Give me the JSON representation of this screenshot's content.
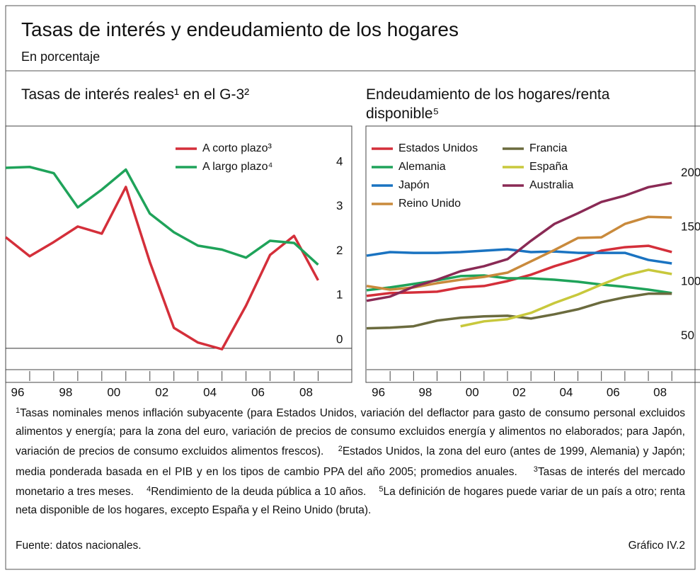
{
  "header": {
    "title": "Tasas de interés y endeudamiento de los hogares",
    "subtitle": "En porcentaje"
  },
  "chart_data": [
    {
      "type": "line",
      "title": "Tasas de interés reales¹ en el G-3²",
      "x": [
        1996,
        1997,
        1998,
        1999,
        2000,
        2001,
        2002,
        2003,
        2004,
        2005,
        2006,
        2007,
        2008,
        2009
      ],
      "series": [
        {
          "name": "A corto plazo³",
          "color": "#d42f3a",
          "values": [
            2.5,
            2.07,
            2.39,
            2.74,
            2.58,
            3.63,
            1.94,
            0.46,
            0.13,
            -0.02,
            0.96,
            2.1,
            2.53,
            1.53
          ]
        },
        {
          "name": "A largo plazo⁴",
          "color": "#1fa35a",
          "values": [
            4.06,
            4.08,
            3.94,
            3.17,
            3.57,
            4.02,
            3.03,
            2.61,
            2.31,
            2.22,
            2.04,
            2.42,
            2.37,
            1.88
          ]
        }
      ],
      "xlim": [
        1996,
        2010.4
      ],
      "ylim": [
        -0.48,
        5.0
      ],
      "yticks": [
        0,
        1,
        2,
        3,
        4
      ],
      "xticks": [
        {
          "value": 1996.5,
          "label": "96"
        },
        {
          "value": 1998.5,
          "label": "98"
        },
        {
          "value": 2000.5,
          "label": "00"
        },
        {
          "value": 2002.5,
          "label": "02"
        },
        {
          "value": 2004.5,
          "label": "04"
        },
        {
          "value": 2006.5,
          "label": "06"
        },
        {
          "value": 2008.5,
          "label": "08"
        }
      ],
      "xminorticks": [
        1997,
        1998,
        1999,
        2000,
        2001,
        2002,
        2003,
        2004,
        2005,
        2006,
        2007,
        2008,
        2009
      ],
      "zero_line": true,
      "legend": "top-right"
    },
    {
      "type": "line",
      "title": "Endeudamiento de los hogares/renta disponible⁵",
      "x": [
        1996,
        1997,
        1998,
        1999,
        2000,
        2001,
        2002,
        2003,
        2004,
        2005,
        2006,
        2007,
        2008,
        2009
      ],
      "series": [
        {
          "name": "Estados Unidos",
          "color": "#d42f3a",
          "values": [
            94.8,
            97.4,
            98,
            98.7,
            102.6,
            103.9,
            108.4,
            114.3,
            122.1,
            128.6,
            136.4,
            139.6,
            140.9,
            135.1
          ]
        },
        {
          "name": "Alemania",
          "color": "#1fa35a",
          "values": [
            100,
            102.6,
            105.8,
            109.1,
            113,
            113.6,
            111,
            111,
            109.7,
            107.8,
            105.2,
            103.2,
            100.6,
            97.4
          ]
        },
        {
          "name": "Japón",
          "color": "#1a73c1",
          "values": [
            131.8,
            135.1,
            134.4,
            134.4,
            135.1,
            136.4,
            137.7,
            135.1,
            135.7,
            134.4,
            134.4,
            134.4,
            127.9,
            124.7
          ]
        },
        {
          "name": "Reino Unido",
          "color": "#c98a3c",
          "values": [
            103.9,
            100.6,
            102.6,
            106.5,
            109.7,
            112.3,
            116.2,
            126.6,
            137,
            148.1,
            148.7,
            161,
            167.5,
            166.9
          ]
        },
        {
          "name": "Francia",
          "color": "#6b6b3e",
          "values": [
            65,
            65.6,
            66.9,
            72.1,
            74.7,
            76,
            76.6,
            74,
            77.9,
            82.5,
            89,
            93.5,
            96.8,
            96.8
          ]
        },
        {
          "name": "España",
          "color": "#c8c83c",
          "values": [
            null,
            null,
            null,
            null,
            66.9,
            71.4,
            73.4,
            79.2,
            88.3,
            96.1,
            105.2,
            113.6,
            118.8,
            114.9
          ]
        },
        {
          "name": "Australia",
          "color": "#8a2a55",
          "values": [
            90.3,
            94.2,
            103.2,
            109.7,
            117.5,
            122.1,
            128.6,
            145.5,
            161,
            170.8,
            181.2,
            187,
            194.8,
            198.7
          ]
        }
      ],
      "xlim": [
        1996,
        2010.2
      ],
      "ylim": [
        27,
        251
      ],
      "yticks": [
        50,
        100,
        150,
        200
      ],
      "xticks": [
        {
          "value": 1996.5,
          "label": "96"
        },
        {
          "value": 1998.5,
          "label": "98"
        },
        {
          "value": 2000.5,
          "label": "00"
        },
        {
          "value": 2002.5,
          "label": "02"
        },
        {
          "value": 2004.5,
          "label": "04"
        },
        {
          "value": 2006.5,
          "label": "06"
        },
        {
          "value": 2008.5,
          "label": "08"
        }
      ],
      "xminorticks": [
        1997,
        1998,
        1999,
        2000,
        2001,
        2002,
        2003,
        2004,
        2005,
        2006,
        2007,
        2008,
        2009
      ],
      "zero_line": false,
      "legend": "top-left"
    }
  ],
  "footnotes": [
    {
      "number": "1",
      "text": "Tasas nominales menos inflación subyacente (para Estados Unidos, variación del deflactor para gasto de consumo personal excluidos alimentos y energía; para la zona del euro, variación de precios de consumo excluidos energía y alimentos no elaborados; para Japón, variación de precios de consumo excluidos alimentos frescos)."
    },
    {
      "number": "2",
      "text": "Estados Unidos, la zona del euro (antes de 1999, Alemania) y Japón; media ponderada basada en el PIB y en los tipos de cambio PPA del año 2005; promedios anuales."
    },
    {
      "number": "3",
      "text": "Tasas de interés del mercado monetario a tres meses."
    },
    {
      "number": "4",
      "text": "Rendimiento de la deuda pública a 10 años."
    },
    {
      "number": "5",
      "text": "La definición de hogares puede variar de un país a otro; renta neta disponible de los hogares, excepto España y el Reino Unido (bruta)."
    }
  ],
  "source": "Fuente: datos nacionales.",
  "figure_label": "Gráfico IV.2"
}
